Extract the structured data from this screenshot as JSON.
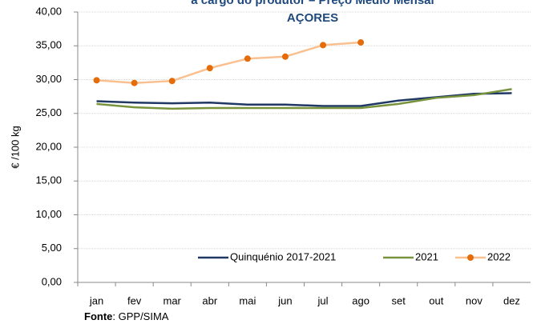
{
  "chart_data": {
    "type": "line",
    "title": "a cargo do produtor – Preço Médio Mensal",
    "subtitle": "AÇORES",
    "y_label": "€ /100 kg",
    "source_label": "Fonte",
    "source_text": ": GPP/SIMA",
    "categories": [
      "jan",
      "fev",
      "mar",
      "abr",
      "mai",
      "jun",
      "jul",
      "ago",
      "set",
      "out",
      "nov",
      "dez"
    ],
    "series": [
      {
        "name": "Quinquénio  2017-2021",
        "color": "#1f3864",
        "values": [
          26.8,
          26.6,
          26.5,
          26.6,
          26.3,
          26.3,
          26.1,
          26.1,
          26.9,
          27.4,
          27.9,
          28.0
        ]
      },
      {
        "name": "2021",
        "color": "#77933c",
        "values": [
          26.4,
          25.9,
          25.7,
          25.8,
          25.8,
          25.8,
          25.8,
          25.8,
          26.4,
          27.3,
          27.7,
          28.6
        ]
      },
      {
        "name": "2022",
        "color": "#fac090",
        "marker_color": "#e46c0a",
        "values": [
          29.9,
          29.5,
          29.8,
          31.7,
          33.1,
          33.4,
          35.1,
          35.5,
          null,
          null,
          null,
          null
        ]
      }
    ],
    "ylim": [
      0,
      40
    ],
    "yticks": [
      {
        "value": 0,
        "label": "0,00"
      },
      {
        "value": 5,
        "label": "5,00"
      },
      {
        "value": 10,
        "label": "10,00"
      },
      {
        "value": 15,
        "label": "15,00"
      },
      {
        "value": 20,
        "label": "20,00"
      },
      {
        "value": 25,
        "label": "25,00"
      },
      {
        "value": 30,
        "label": "30,00"
      },
      {
        "value": 35,
        "label": "35,00"
      },
      {
        "value": 40,
        "label": "40,00"
      }
    ],
    "grid": true,
    "legend": "bottom-right"
  }
}
